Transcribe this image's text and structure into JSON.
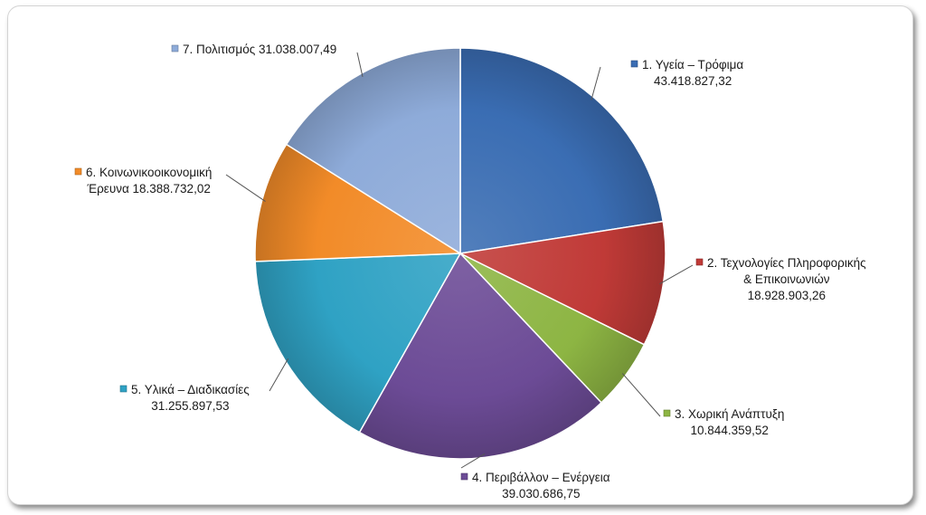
{
  "chart_data": {
    "type": "pie",
    "title": "",
    "start_angle_deg": 0,
    "direction": "clockwise",
    "legend": "none",
    "slices": [
      {
        "label_lines": [
          "1. Υγεία – Τρόφιμα",
          "43.418.827,32"
        ],
        "value": 43418827.32,
        "color": "#3a6db3"
      },
      {
        "label_lines": [
          "2. Τεχνολογίες Πληροφορικής",
          "& Επικοινωνιών",
          "18.928.903,26"
        ],
        "value": 18928903.26,
        "color": "#c03a37"
      },
      {
        "label_lines": [
          "3. Χωρική Ανάπτυξη",
          "10.844.359,52"
        ],
        "value": 10844359.52,
        "color": "#8db543"
      },
      {
        "label_lines": [
          "4. Περιβάλλον – Ενέργεια",
          "39.030.686,75"
        ],
        "value": 39030686.75,
        "color": "#6c4b96"
      },
      {
        "label_lines": [
          "5. Υλικά – Διαδικασίες",
          "31.255.897,53"
        ],
        "value": 31255897.53,
        "color": "#2fa2c4"
      },
      {
        "label_lines": [
          "6. Κοινωνικοοικονομική",
          "Έρευνα 18.388.732,02"
        ],
        "value": 18388732.02,
        "color": "#f28b28"
      },
      {
        "label_lines": [
          "7. Πολιτισμός 31.038.007,49"
        ],
        "value": 31038007.49,
        "color": "#8eabd9"
      }
    ]
  }
}
